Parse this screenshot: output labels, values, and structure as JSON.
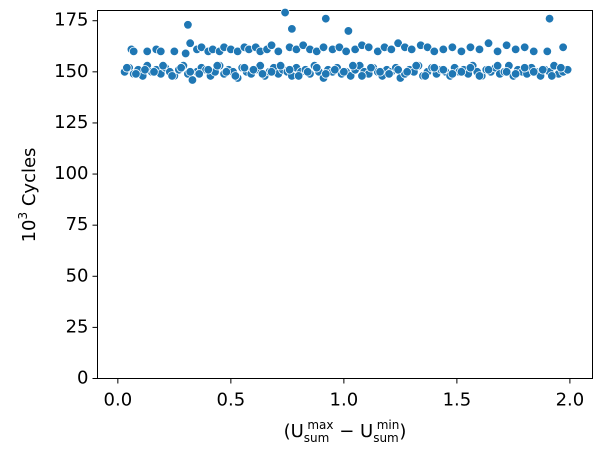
{
  "chart_data": {
    "type": "scatter",
    "y_label": [
      "10",
      "3",
      " Cycles"
    ],
    "x_label": [
      "(U",
      "sum",
      "max",
      " − U",
      "sum",
      "min",
      ")"
    ],
    "xlim": [
      -0.09,
      2.1
    ],
    "ylim": [
      0,
      180
    ],
    "xticks": [
      {
        "value": 0,
        "label": "0.0"
      },
      0.5,
      {
        "value": 1,
        "label": "1.0"
      },
      1.5,
      {
        "value": 2,
        "label": "2.0"
      }
    ],
    "yticks": [
      0,
      25,
      50,
      75,
      100,
      125,
      150,
      175
    ],
    "grid": false,
    "series": [
      {
        "name": "cycles",
        "color": "#1f77b4",
        "x": [
          0.03,
          0.05,
          0.07,
          0.09,
          0.11,
          0.13,
          0.15,
          0.17,
          0.19,
          0.21,
          0.23,
          0.25,
          0.27,
          0.29,
          0.31,
          0.33,
          0.35,
          0.37,
          0.39,
          0.41,
          0.43,
          0.45,
          0.47,
          0.49,
          0.51,
          0.53,
          0.55,
          0.57,
          0.59,
          0.61,
          0.63,
          0.65,
          0.67,
          0.69,
          0.71,
          0.73,
          0.75,
          0.77,
          0.79,
          0.81,
          0.83,
          0.85,
          0.87,
          0.89,
          0.91,
          0.93,
          0.95,
          0.97,
          0.99,
          1.01,
          1.03,
          1.05,
          1.07,
          1.09,
          1.11,
          1.13,
          1.15,
          1.17,
          1.19,
          1.21,
          1.23,
          1.25,
          1.27,
          1.29,
          1.31,
          1.33,
          1.35,
          1.37,
          1.39,
          1.41,
          1.43,
          1.45,
          1.47,
          1.49,
          1.51,
          1.53,
          1.55,
          1.57,
          1.59,
          1.61,
          1.63,
          1.65,
          1.67,
          1.69,
          1.71,
          1.73,
          1.75,
          1.77,
          1.79,
          1.81,
          1.83,
          1.85,
          1.87,
          1.89,
          1.91,
          1.93,
          1.95,
          1.97,
          1.99,
          0.04,
          0.08,
          0.12,
          0.16,
          0.2,
          0.24,
          0.28,
          0.32,
          0.36,
          0.4,
          0.44,
          0.48,
          0.52,
          0.56,
          0.6,
          0.64,
          0.68,
          0.72,
          0.76,
          0.8,
          0.84,
          0.88,
          0.92,
          0.96,
          1.0,
          1.04,
          1.08,
          1.12,
          1.16,
          1.2,
          1.24,
          1.28,
          1.32,
          1.36,
          1.4,
          1.44,
          1.48,
          1.52,
          1.56,
          1.6,
          1.64,
          1.68,
          1.72,
          1.76,
          1.8,
          1.84,
          1.88,
          1.92,
          1.96,
          0.06,
          0.07,
          0.13,
          0.17,
          0.19,
          0.25,
          0.3,
          0.32,
          0.35,
          0.37,
          0.4,
          0.42,
          0.45,
          0.47,
          0.5,
          0.53,
          0.56,
          0.58,
          0.61,
          0.63,
          0.66,
          0.68,
          0.71,
          0.76,
          0.79,
          0.82,
          0.85,
          0.88,
          0.91,
          0.95,
          0.98,
          1.01,
          1.05,
          1.08,
          1.11,
          1.15,
          1.18,
          1.21,
          1.24,
          1.27,
          1.3,
          1.34,
          1.37,
          1.4,
          1.44,
          1.48,
          1.52,
          1.56,
          1.6,
          1.64,
          1.68,
          1.72,
          1.76,
          1.8,
          1.84,
          1.9,
          1.97,
          0.31,
          0.74,
          0.77,
          0.92,
          1.02,
          1.91
        ],
        "values": [
          150,
          152,
          149,
          151,
          148,
          153,
          150,
          151,
          149,
          152,
          150,
          148,
          151,
          153,
          149,
          146,
          150,
          152,
          151,
          148,
          150,
          153,
          149,
          151,
          150,
          147,
          152,
          150,
          149,
          151,
          153,
          148,
          150,
          152,
          149,
          151,
          150,
          148,
          152,
          150,
          151,
          149,
          153,
          150,
          147,
          151,
          150,
          152,
          149,
          150,
          148,
          151,
          153,
          150,
          149,
          152,
          150,
          148,
          151,
          150,
          152,
          147,
          149,
          151,
          150,
          153,
          148,
          150,
          152,
          149,
          151,
          150,
          148,
          152,
          150,
          151,
          149,
          153,
          150,
          148,
          151,
          150,
          152,
          149,
          150,
          153,
          148,
          151,
          150,
          149,
          152,
          150,
          148,
          151,
          150,
          153,
          149,
          150,
          151,
          152,
          149,
          151,
          150,
          153,
          148,
          152,
          150,
          149,
          151,
          153,
          150,
          148,
          152,
          151,
          149,
          150,
          153,
          151,
          148,
          150,
          152,
          149,
          151,
          150,
          153,
          148,
          152,
          150,
          149,
          151,
          150,
          153,
          148,
          152,
          151,
          149,
          150,
          152,
          148,
          151,
          153,
          150,
          149,
          152,
          150,
          151,
          148,
          152,
          161,
          160,
          160,
          161,
          160,
          160,
          159,
          164,
          161,
          162,
          160,
          161,
          160,
          162,
          161,
          160,
          162,
          161,
          162,
          160,
          161,
          163,
          160,
          162,
          161,
          163,
          161,
          160,
          162,
          161,
          162,
          160,
          161,
          163,
          162,
          160,
          162,
          161,
          164,
          162,
          161,
          163,
          162,
          160,
          161,
          162,
          160,
          162,
          161,
          164,
          160,
          163,
          161,
          162,
          160,
          160,
          162,
          173,
          179,
          171,
          176,
          170,
          176
        ]
      }
    ]
  }
}
